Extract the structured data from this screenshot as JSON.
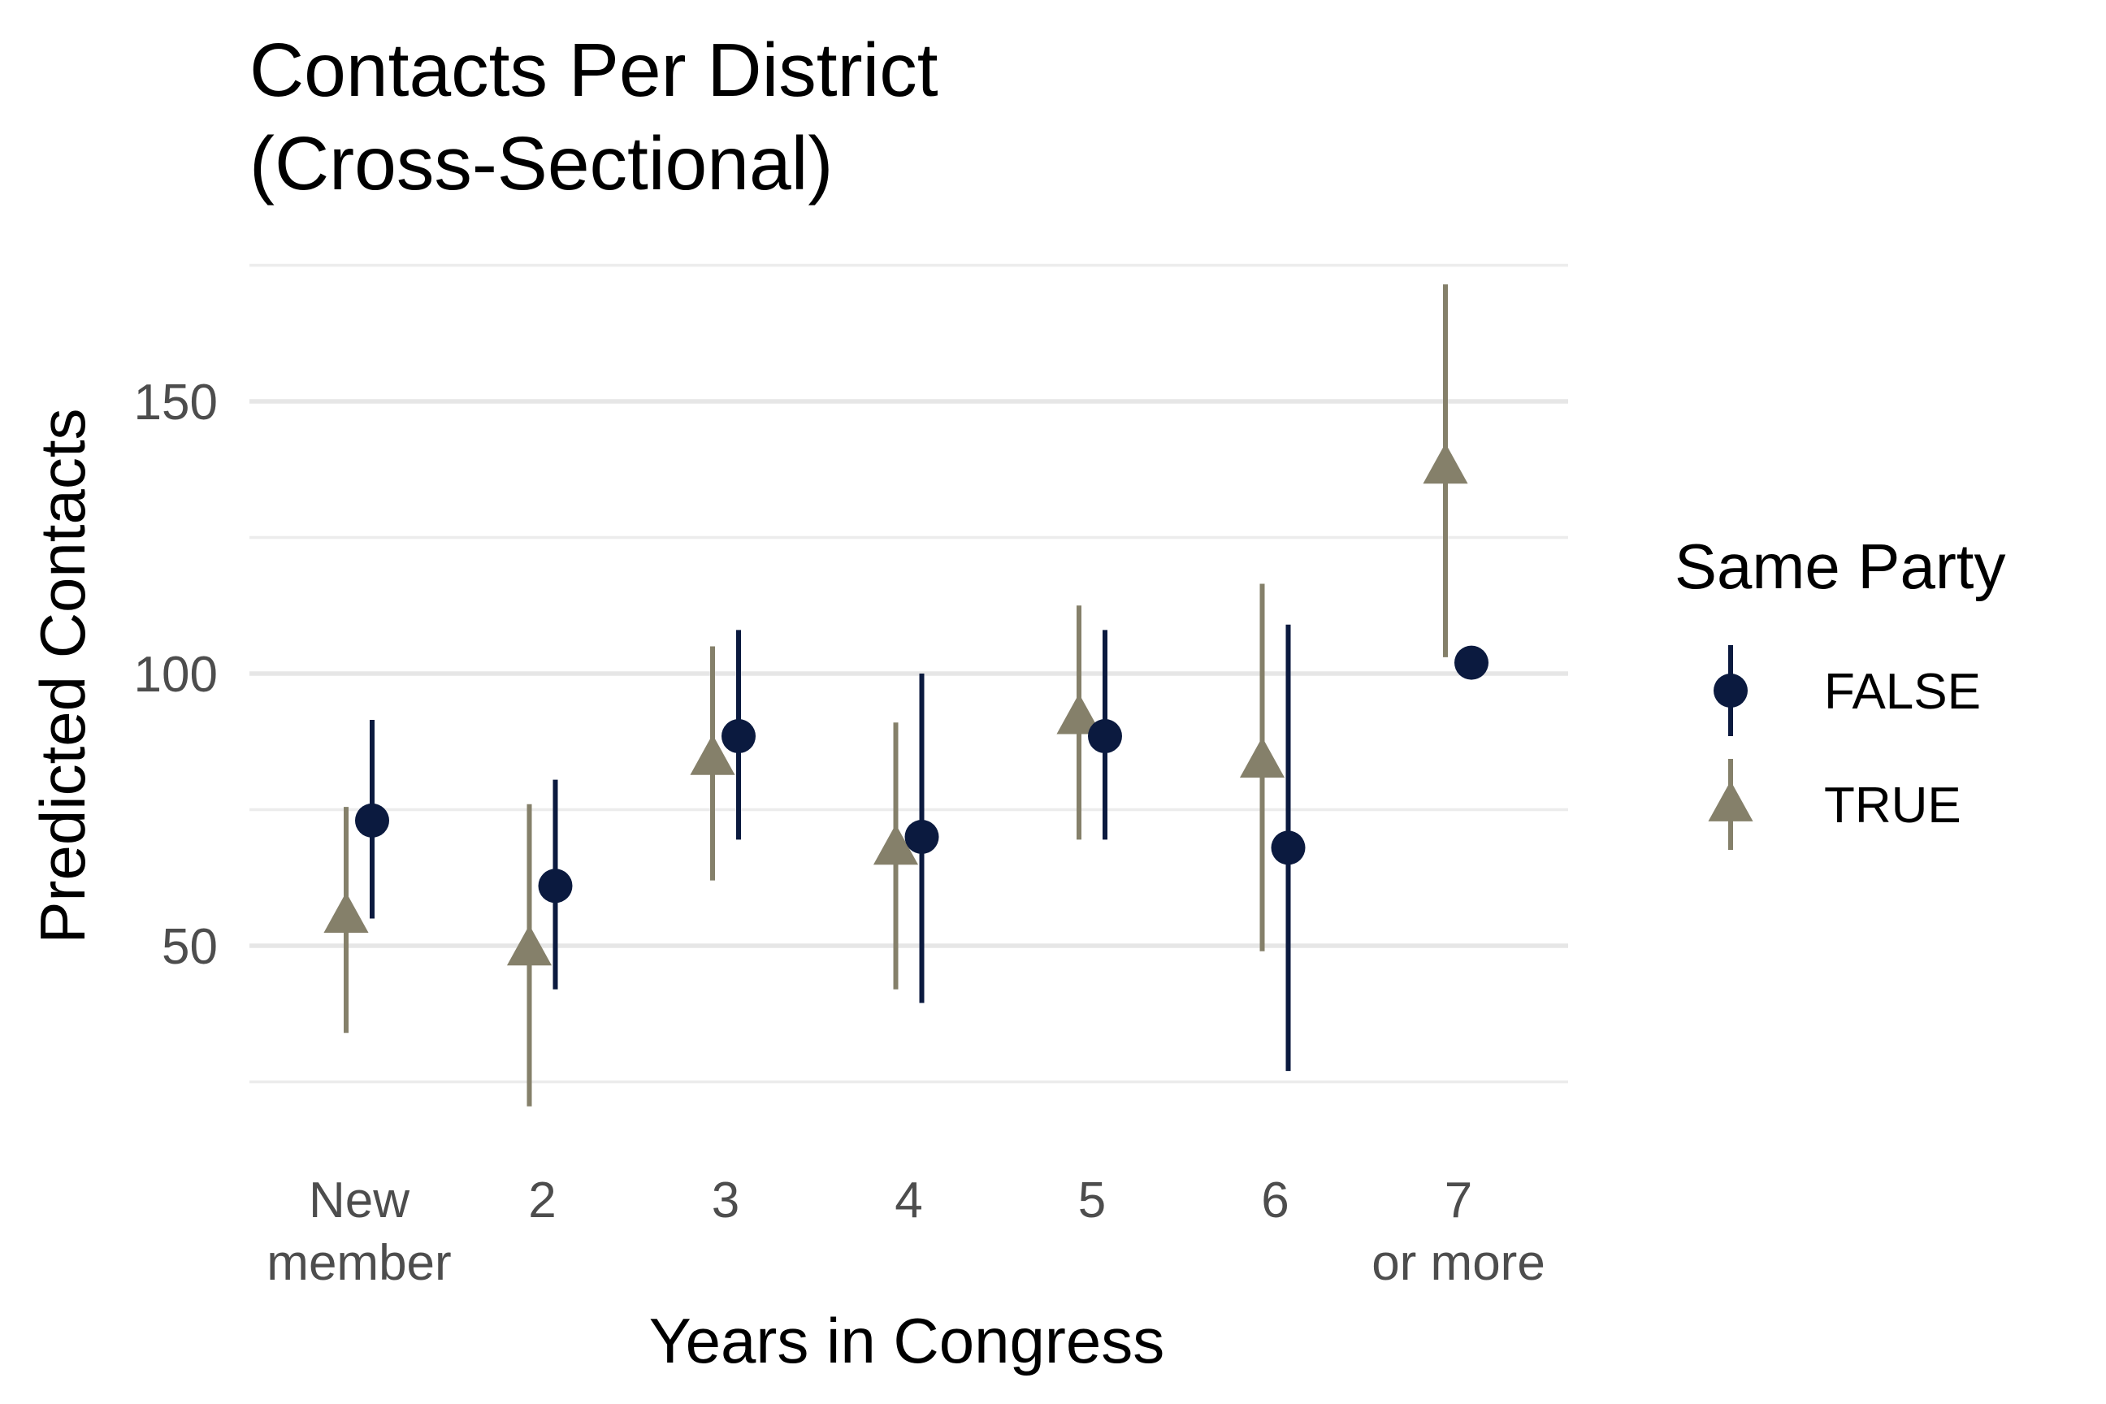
{
  "chart_data": {
    "type": "scatter",
    "title_lines": [
      "Contacts Per District",
      "(Cross-Sectional)"
    ],
    "xlabel": "Years in Congress",
    "ylabel": "Predicted Contacts",
    "categories": [
      [
        "New",
        "member"
      ],
      [
        "2"
      ],
      [
        "3"
      ],
      [
        "4"
      ],
      [
        "5"
      ],
      [
        "6"
      ],
      [
        "7",
        "or more"
      ]
    ],
    "ylim": [
      16,
      175
    ],
    "y_ticks": [
      50,
      100,
      150
    ],
    "grid": true,
    "legend": {
      "title": "Same Party",
      "placement": "right"
    },
    "series": [
      {
        "name": "FALSE",
        "marker": "circle",
        "color": "#0b1a3f",
        "points": [
          {
            "y": 73,
            "lo": 55,
            "hi": 91.5
          },
          {
            "y": 61,
            "lo": 42,
            "hi": 80.5
          },
          {
            "y": 88.5,
            "lo": 69.5,
            "hi": 108
          },
          {
            "y": 70,
            "lo": 39.5,
            "hi": 100
          },
          {
            "y": 88.5,
            "lo": 69.5,
            "hi": 108
          },
          {
            "y": 68,
            "lo": 27,
            "hi": 109
          },
          {
            "y": 102,
            "lo": 102,
            "hi": 102
          }
        ]
      },
      {
        "name": "TRUE",
        "marker": "triangle",
        "color": "#85806a",
        "points": [
          {
            "y": 55.5,
            "lo": 34,
            "hi": 75.5
          },
          {
            "y": 49.5,
            "lo": 20.5,
            "hi": 76
          },
          {
            "y": 84.5,
            "lo": 62,
            "hi": 105
          },
          {
            "y": 68,
            "lo": 42,
            "hi": 91
          },
          {
            "y": 92,
            "lo": 69.5,
            "hi": 112.5
          },
          {
            "y": 84,
            "lo": 49,
            "hi": 116.5
          },
          {
            "y": 138,
            "lo": 103,
            "hi": 171.5
          }
        ]
      }
    ]
  }
}
